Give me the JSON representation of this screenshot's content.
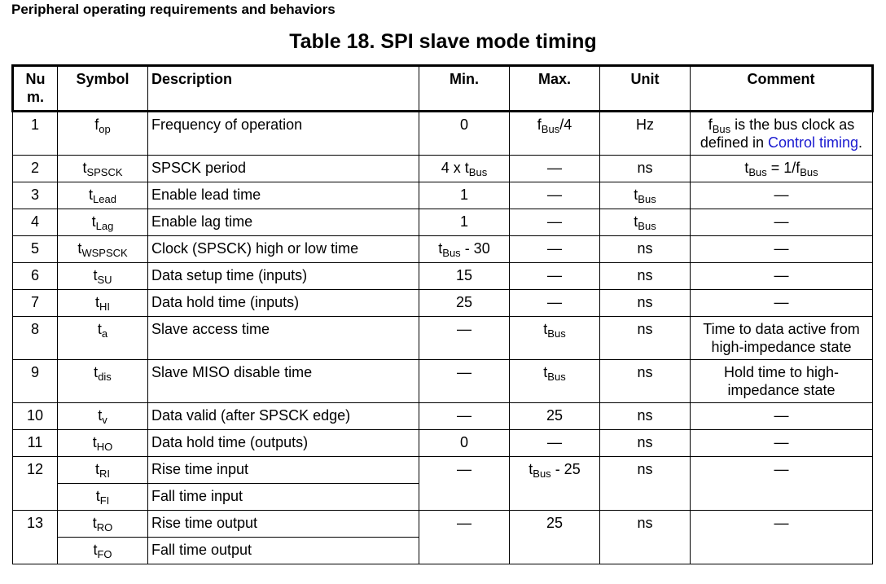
{
  "section_header": "Peripheral operating requirements and behaviors",
  "table_title": "Table 18.   SPI slave mode timing",
  "columns": {
    "num_a": "Nu",
    "num_b": "m.",
    "symbol": "Symbol",
    "description": "Description",
    "min": "Min.",
    "max": "Max.",
    "unit": "Unit",
    "comment": "Comment"
  },
  "rows": [
    {
      "num": "1",
      "sym": "f",
      "sym_sub": "op",
      "desc": "Frequency of operation",
      "min": "0",
      "max_main": "f",
      "max_sub": "Bus",
      "max_suffix": "/4",
      "unit": "Hz",
      "comment_a": "f",
      "comment_sub": "Bus",
      "comment_b": " is the bus clock as",
      "comment_c": "defined in ",
      "comment_link": "Control timing",
      "comment_d": "."
    },
    {
      "num": "2",
      "sym": "t",
      "sym_sub": "SPSCK",
      "desc": "SPSCK period",
      "min_a": "4 x t",
      "min_sub": "Bus",
      "max": "—",
      "unit": "ns",
      "comment_a": "t",
      "comment_sub": "Bus",
      "comment_b": " = 1/f",
      "comment_sub2": "Bus"
    },
    {
      "num": "3",
      "sym": "t",
      "sym_sub": "Lead",
      "desc": "Enable lead time",
      "min": "1",
      "max": "—",
      "unit_a": "t",
      "unit_sub": "Bus",
      "comment": "—"
    },
    {
      "num": "4",
      "sym": "t",
      "sym_sub": "Lag",
      "desc": "Enable lag time",
      "min": "1",
      "max": "—",
      "unit_a": "t",
      "unit_sub": "Bus",
      "comment": "—"
    },
    {
      "num": "5",
      "sym": "t",
      "sym_sub": "WSPSCK",
      "desc": "Clock (SPSCK) high or low time",
      "min_a": "t",
      "min_sub": "Bus",
      "min_b": " - 30",
      "max": "—",
      "unit": "ns",
      "comment": "—"
    },
    {
      "num": "6",
      "sym": "t",
      "sym_sub": "SU",
      "desc": "Data setup time (inputs)",
      "min": "15",
      "max": "—",
      "unit": "ns",
      "comment": "—"
    },
    {
      "num": "7",
      "sym": "t",
      "sym_sub": "HI",
      "desc": "Data hold time (inputs)",
      "min": "25",
      "max": "—",
      "unit": "ns",
      "comment": "—"
    },
    {
      "num": "8",
      "sym": "t",
      "sym_sub": "a",
      "desc": "Slave access time",
      "min": "—",
      "max_a": "t",
      "max_sub": "Bus",
      "unit": "ns",
      "comment_a": "Time to data active from",
      "comment_b": "high-impedance state"
    },
    {
      "num": "9",
      "sym": "t",
      "sym_sub": "dis",
      "desc": "Slave MISO disable time",
      "min": "—",
      "max_a": "t",
      "max_sub": "Bus",
      "unit": "ns",
      "comment_a": "Hold time to high-",
      "comment_b": "impedance state"
    },
    {
      "num": "10",
      "sym": "t",
      "sym_sub": "v",
      "desc": "Data valid (after SPSCK edge)",
      "min": "—",
      "max": "25",
      "unit": "ns",
      "comment": "—"
    },
    {
      "num": "11",
      "sym": "t",
      "sym_sub": "HO",
      "desc": "Data hold time (outputs)",
      "min": "0",
      "max": "—",
      "unit": "ns",
      "comment": "—"
    },
    {
      "num": "12",
      "sym": "t",
      "sym_sub": "RI",
      "desc": "Rise time input",
      "sym2": "t",
      "sym2_sub": "FI",
      "desc2": "Fall time input",
      "min": "—",
      "max_a": "t",
      "max_sub": "Bus",
      "max_b": " - 25",
      "unit": "ns",
      "comment": "—"
    },
    {
      "num": "13",
      "sym": "t",
      "sym_sub": "RO",
      "desc": "Rise time output",
      "sym2": "t",
      "sym2_sub": "FO",
      "desc2": "Fall time output",
      "min": "—",
      "max": "25",
      "unit": "ns",
      "comment": "—"
    }
  ]
}
